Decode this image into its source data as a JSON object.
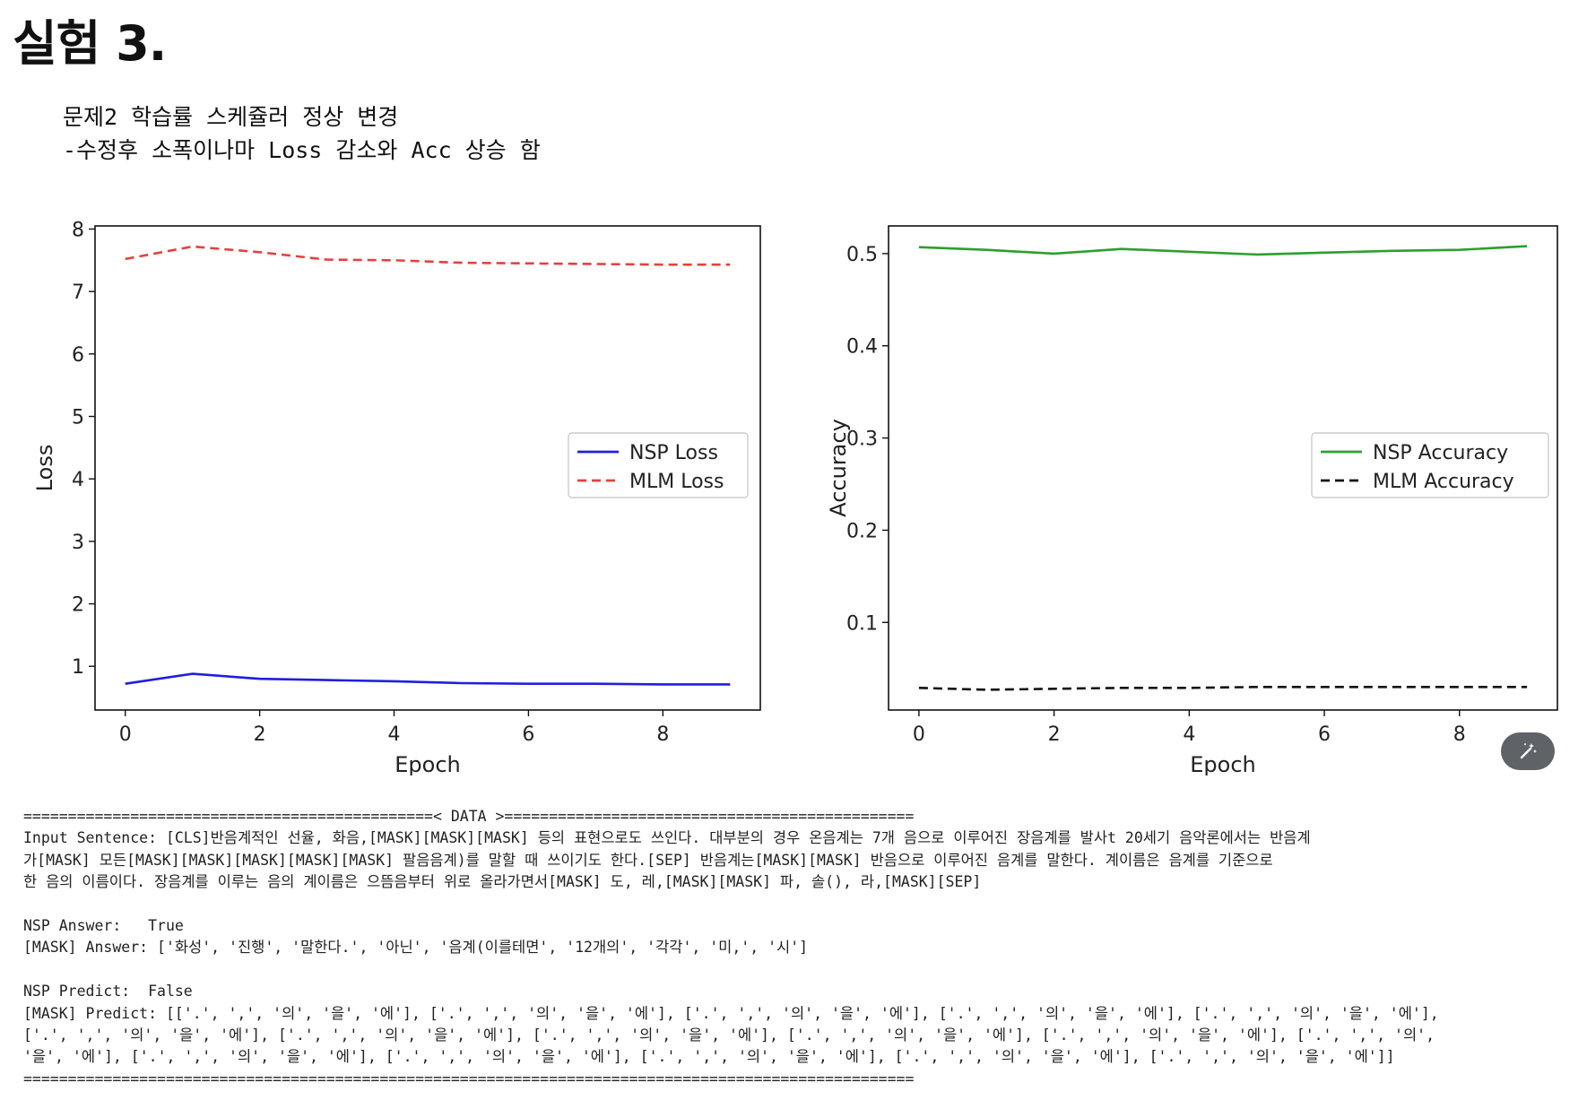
{
  "page": {
    "title": "실험 3.",
    "note_lines": [
      "문제2 학습률 스케쥴러 정상 변경",
      "-수정후 소폭이나마 Loss 감소와 Acc 상승 함"
    ]
  },
  "chart_data": [
    {
      "type": "line",
      "title": "",
      "xlabel": "Epoch",
      "ylabel": "Loss",
      "x": [
        0,
        1,
        2,
        3,
        4,
        5,
        6,
        7,
        8,
        9
      ],
      "xlim": [
        -0.45,
        9.45
      ],
      "ylim": [
        0.3,
        8.05
      ],
      "xticks": [
        0,
        2,
        4,
        6,
        8
      ],
      "yticks": [
        1,
        2,
        3,
        4,
        5,
        6,
        7,
        8
      ],
      "grid": false,
      "legend_position": "center-right",
      "series": [
        {
          "name": "NSP Loss",
          "color": "#1f1fe0",
          "style": "solid",
          "values": [
            0.72,
            0.88,
            0.8,
            0.78,
            0.76,
            0.73,
            0.72,
            0.72,
            0.71,
            0.71
          ]
        },
        {
          "name": "MLM Loss",
          "color": "#e8403a",
          "style": "dashed",
          "values": [
            7.52,
            7.72,
            7.63,
            7.51,
            7.5,
            7.46,
            7.45,
            7.44,
            7.43,
            7.43
          ]
        }
      ]
    },
    {
      "type": "line",
      "title": "",
      "xlabel": "Epoch",
      "ylabel": "Accuracy",
      "x": [
        0,
        1,
        2,
        3,
        4,
        5,
        6,
        7,
        8,
        9
      ],
      "xlim": [
        -0.45,
        9.45
      ],
      "ylim": [
        0.005,
        0.53
      ],
      "xticks": [
        0,
        2,
        4,
        6,
        8
      ],
      "yticks": [
        0.1,
        0.2,
        0.3,
        0.4,
        0.5
      ],
      "grid": false,
      "legend_position": "center-right",
      "series": [
        {
          "name": "NSP Accuracy",
          "color": "#2ca02c",
          "style": "solid",
          "values": [
            0.507,
            0.504,
            0.5,
            0.505,
            0.502,
            0.499,
            0.501,
            0.503,
            0.504,
            0.508
          ]
        },
        {
          "name": "MLM Accuracy",
          "color": "#111111",
          "style": "dashed",
          "values": [
            0.029,
            0.027,
            0.028,
            0.029,
            0.029,
            0.03,
            0.03,
            0.03,
            0.03,
            0.03
          ]
        }
      ]
    }
  ],
  "console": {
    "lines": [
      "==============================================< DATA >==============================================",
      "Input Sentence: [CLS]반음계적인 선율, 화음,[MASK][MASK][MASK] 등의 표현으로도 쓰인다. 대부분의 경우 온음계는 7개 음으로 이루어진 장음계를 발사t 20세기 음악론에서는 반음계",
      "가[MASK] 모든[MASK][MASK][MASK][MASK][MASK] 팔음음계)를 말할 때 쓰이기도 한다.[SEP] 반음계는[MASK][MASK] 반음으로 이루어진 음계를 말한다. 계이름은 음계를 기준으로",
      "한 음의 이름이다. 장음계를 이루는 음의 계이름은 으뜸음부터 위로 올라가면서[MASK] 도, 레,[MASK][MASK] 파, 솔(), 라,[MASK][SEP]",
      "",
      "NSP Answer:   True",
      "[MASK] Answer: ['화성', '진행', '말한다.', '아닌', '음계(이를테면', '12개의', '각각', '미,', '시']",
      "",
      "NSP Predict:  False",
      "[MASK] Predict: [['.', ',', '의', '을', '에'], ['.', ',', '의', '을', '에'], ['.', ',', '의', '을', '에'], ['.', ',', '의', '을', '에'], ['.', ',', '의', '을', '에'],",
      "['.', ',', '의', '을', '에'], ['.', ',', '의', '을', '에'], ['.', ',', '의', '을', '에'], ['.', ',', '의', '을', '에'], ['.', ',', '의', '을', '에'], ['.', ',', '의',",
      "'을', '에'], ['.', ',', '의', '을', '에'], ['.', ',', '의', '을', '에'], ['.', ',', '의', '을', '에'], ['.', ',', '의', '을', '에'], ['.', ',', '의', '을', '에']]",
      "===================================================================================================="
    ]
  },
  "toolbar": {
    "fab_icon": "magic-wand-icon"
  }
}
